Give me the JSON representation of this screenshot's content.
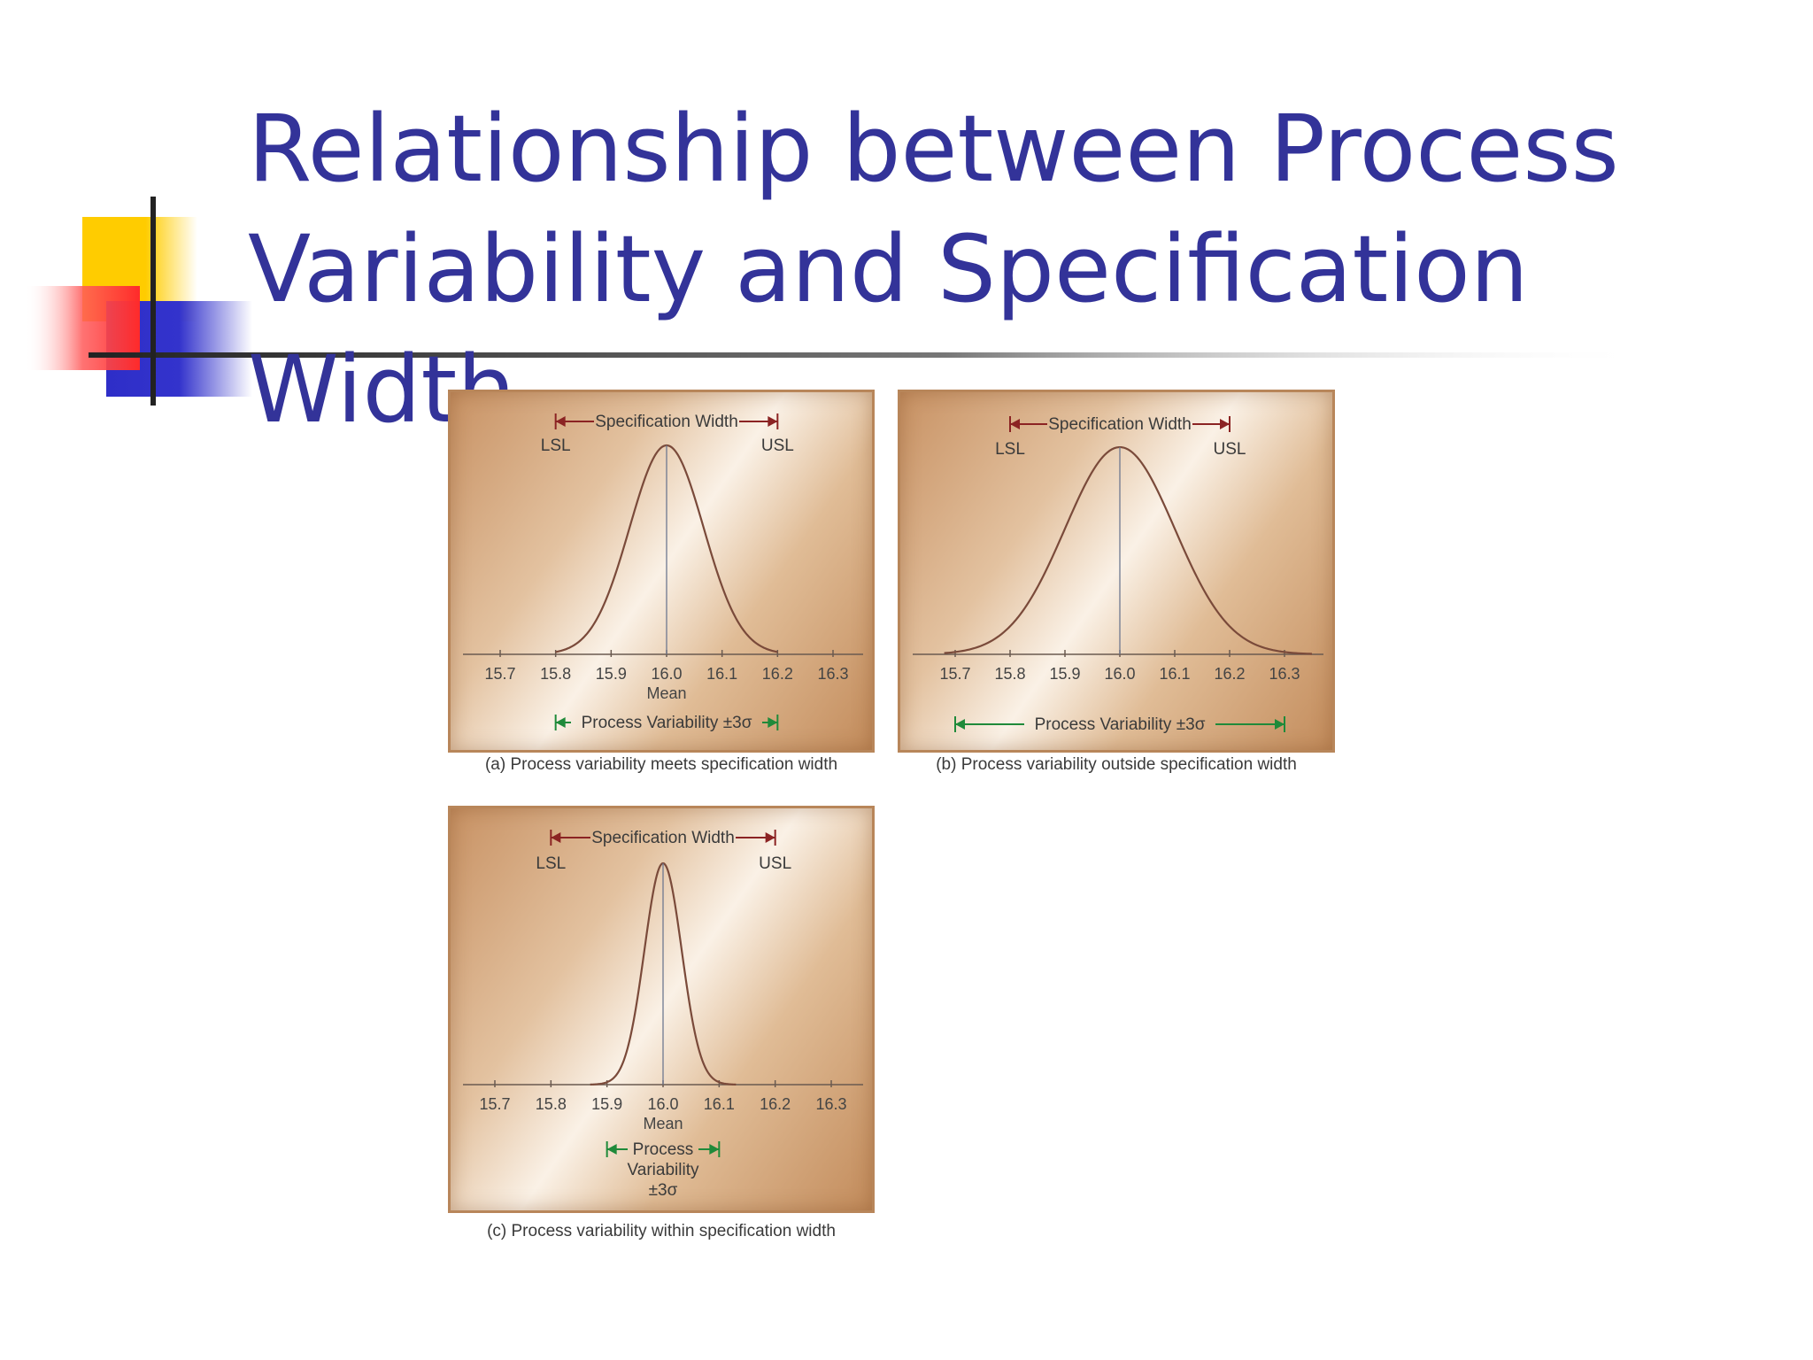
{
  "slide": {
    "title_line1": "Relationship between Process",
    "title_line2": "Variability and Specification Width",
    "colors": {
      "title": "#333399",
      "deco_yellow": "#ffcc00",
      "deco_red": "#ff3333",
      "deco_blue": "#3333cc",
      "spec_arrow": "#8b2323",
      "process_arrow": "#1f8a3a",
      "curve": "#7a4a3a"
    },
    "decoration_icon": "yellow-red-blue-squares-with-crosshair"
  },
  "chart_data": [
    {
      "type": "line",
      "panel": "a",
      "caption": "(a) Process variability meets specification width",
      "x_ticks": [
        "15.7",
        "15.8",
        "15.9",
        "16.0",
        "16.1",
        "16.2",
        "16.3"
      ],
      "xlim": [
        15.7,
        16.3
      ],
      "mean_value": 16.0,
      "mean_label": "Mean",
      "lsl_label": "LSL",
      "usl_label": "USL",
      "lsl": 15.8,
      "usl": 16.2,
      "spec_width_label": "Specification Width",
      "process_variability_label": "Process Variability ±3σ",
      "process_range": [
        15.8,
        16.2
      ],
      "curve_extent": [
        15.8,
        16.2
      ],
      "sigma": 0.0667
    },
    {
      "type": "line",
      "panel": "b",
      "caption": "(b) Process variability outside specification width",
      "x_ticks": [
        "15.7",
        "15.8",
        "15.9",
        "16.0",
        "16.1",
        "16.2",
        "16.3"
      ],
      "xlim": [
        15.7,
        16.3
      ],
      "mean_value": 16.0,
      "lsl_label": "LSL",
      "usl_label": "USL",
      "lsl": 15.8,
      "usl": 16.2,
      "spec_width_label": "Specification Width",
      "process_variability_label": "Process Variability ±3σ",
      "process_range": [
        15.7,
        16.3
      ],
      "curve_extent": [
        15.68,
        16.35
      ],
      "sigma": 0.1
    },
    {
      "type": "line",
      "panel": "c",
      "caption": "(c) Process variability within specification width",
      "x_ticks": [
        "15.7",
        "15.8",
        "15.9",
        "16.0",
        "16.1",
        "16.2",
        "16.3"
      ],
      "xlim": [
        15.7,
        16.3
      ],
      "mean_value": 16.0,
      "mean_label": "Mean",
      "lsl_label": "LSL",
      "usl_label": "USL",
      "lsl": 15.8,
      "usl": 16.2,
      "spec_width_label": "Specification Width",
      "process_variability_lines": [
        "Process",
        "Variability",
        "±3σ"
      ],
      "process_range": [
        15.9,
        16.1
      ],
      "curve_extent": [
        15.87,
        16.13
      ],
      "sigma": 0.0333
    }
  ]
}
